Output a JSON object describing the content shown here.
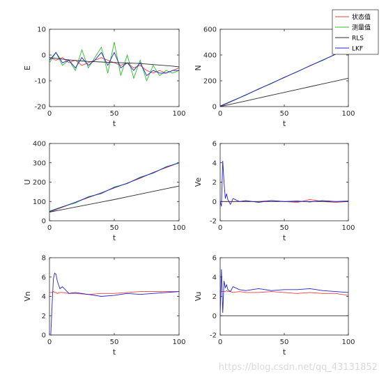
{
  "watermark": "https://blog.csdn.net/qq_43131852",
  "colors": {
    "state": "#e8413f",
    "meas": "#22c322",
    "rls": "#2b2b2b",
    "lkf": "#2020d0",
    "axis": "#262626"
  },
  "chart_data": [
    {
      "id": "E",
      "type": "line",
      "xlabel": "t",
      "ylabel": "E",
      "xlim": [
        0,
        100
      ],
      "ylim": [
        -20,
        10
      ],
      "xticks": [
        0,
        50,
        100
      ],
      "yticks": [
        -20,
        -10,
        0,
        10
      ],
      "x": [
        0,
        5,
        10,
        15,
        20,
        25,
        30,
        35,
        40,
        45,
        50,
        55,
        60,
        65,
        70,
        75,
        80,
        85,
        90,
        95,
        100
      ],
      "series": [
        {
          "name": "状态值",
          "key": "state",
          "values": [
            -1,
            -2,
            -1,
            -3,
            -2,
            -4,
            -3,
            -2,
            -1,
            -2,
            -3,
            -4,
            -3,
            -5,
            -4,
            -6,
            -7,
            -6,
            -7,
            -6,
            -5
          ]
        },
        {
          "name": "测量值",
          "key": "meas",
          "values": [
            -3,
            1,
            -4,
            -2,
            -6,
            2,
            -5,
            -1,
            3,
            -7,
            5,
            -8,
            0,
            -9,
            -2,
            -10,
            -4,
            -8,
            -6,
            -7,
            -6
          ]
        },
        {
          "name": "RLS",
          "key": "rls",
          "values": [
            -1,
            -1.3,
            -1.6,
            -1.9,
            -2.1,
            -2.3,
            -2.5,
            -2.6,
            -2.7,
            -2.8,
            -2.9,
            -3.0,
            -3.1,
            -3.2,
            -3.3,
            -3.5,
            -3.7,
            -3.9,
            -4.1,
            -4.3,
            -4.6
          ]
        },
        {
          "name": "LKF",
          "key": "lkf",
          "values": [
            -2,
            1,
            -3,
            -2,
            -5,
            -1,
            -4,
            -2,
            1,
            -4,
            1,
            -5,
            -3,
            -6,
            -3,
            -8,
            -6,
            -7,
            -7,
            -6,
            -6
          ]
        }
      ]
    },
    {
      "id": "N",
      "type": "line",
      "xlabel": "t",
      "ylabel": "N",
      "xlim": [
        0,
        100
      ],
      "ylim": [
        0,
        600
      ],
      "xticks": [
        0,
        50,
        100
      ],
      "yticks": [
        0,
        200,
        400,
        600
      ],
      "x": [
        0,
        10,
        20,
        30,
        40,
        50,
        60,
        70,
        80,
        90,
        100
      ],
      "series": [
        {
          "name": "状态值",
          "key": "state",
          "values": [
            0,
            45,
            90,
            135,
            180,
            225,
            270,
            315,
            360,
            405,
            450
          ]
        },
        {
          "name": "测量值",
          "key": "meas",
          "values": [
            5,
            48,
            88,
            138,
            178,
            228,
            268,
            318,
            358,
            408,
            452
          ]
        },
        {
          "name": "RLS",
          "key": "rls",
          "values": [
            0,
            22,
            44,
            66,
            88,
            110,
            132,
            154,
            176,
            198,
            220
          ]
        },
        {
          "name": "LKF",
          "key": "lkf",
          "values": [
            3,
            46,
            91,
            136,
            181,
            226,
            271,
            316,
            361,
            406,
            451
          ]
        }
      ]
    },
    {
      "id": "U",
      "type": "line",
      "xlabel": "t",
      "ylabel": "U",
      "xlim": [
        0,
        100
      ],
      "ylim": [
        0,
        400
      ],
      "xticks": [
        0,
        50,
        100
      ],
      "yticks": [
        0,
        100,
        200,
        300,
        400
      ],
      "x": [
        0,
        10,
        20,
        30,
        40,
        50,
        60,
        70,
        80,
        90,
        100
      ],
      "series": [
        {
          "name": "状态值",
          "key": "state",
          "values": [
            45,
            70,
            95,
            120,
            145,
            170,
            195,
            220,
            250,
            275,
            300
          ]
        },
        {
          "name": "测量值",
          "key": "meas",
          "values": [
            50,
            73,
            92,
            125,
            140,
            175,
            192,
            226,
            246,
            280,
            298
          ]
        },
        {
          "name": "RLS",
          "key": "rls",
          "values": [
            45,
            58,
            71,
            84,
            97,
            110,
            124,
            138,
            152,
            166,
            180
          ]
        },
        {
          "name": "LKF",
          "key": "lkf",
          "values": [
            48,
            72,
            96,
            122,
            143,
            172,
            194,
            223,
            248,
            278,
            301
          ]
        }
      ]
    },
    {
      "id": "Ve",
      "type": "line",
      "xlabel": "t",
      "ylabel": "Ve",
      "xlim": [
        0,
        100
      ],
      "ylim": [
        -2,
        6
      ],
      "xticks": [
        0,
        50,
        100
      ],
      "yticks": [
        -2,
        0,
        2,
        4,
        6
      ],
      "x": [
        0,
        1,
        2,
        3,
        4,
        5,
        6,
        8,
        10,
        15,
        20,
        30,
        40,
        50,
        60,
        70,
        80,
        90,
        100
      ],
      "series": [
        {
          "name": "状态值",
          "key": "state",
          "values": [
            0,
            0,
            0,
            0,
            0,
            0,
            0,
            0,
            0,
            0,
            0,
            0,
            0.1,
            0,
            -0.1,
            0.2,
            0,
            -0.1,
            0
          ]
        },
        {
          "name": "RLS",
          "key": "rls",
          "values": [
            0,
            0,
            0,
            0,
            0,
            0,
            0,
            0,
            0,
            0,
            0,
            0,
            0,
            0,
            0,
            0,
            0,
            0,
            0
          ]
        },
        {
          "name": "LKF",
          "key": "lkf",
          "values": [
            0,
            -0.5,
            4.2,
            2.0,
            0.3,
            0.8,
            0.2,
            -0.3,
            0.3,
            0.0,
            0.1,
            -0.1,
            0.1,
            0.0,
            0.05,
            -0.05,
            0.1,
            0.0,
            0.05
          ]
        }
      ]
    },
    {
      "id": "Vn",
      "type": "line",
      "xlabel": "t",
      "ylabel": "Vn",
      "xlim": [
        0,
        100
      ],
      "ylim": [
        0,
        8
      ],
      "xticks": [
        0,
        50,
        100
      ],
      "yticks": [
        0,
        2,
        4,
        6,
        8
      ],
      "x": [
        0,
        1,
        2,
        3,
        4,
        5,
        6,
        8,
        10,
        15,
        20,
        30,
        40,
        50,
        60,
        70,
        80,
        90,
        100
      ],
      "series": [
        {
          "name": "状态值",
          "key": "state",
          "values": [
            4.4,
            4.4,
            4.4,
            4.5,
            4.4,
            4.4,
            4.3,
            4.4,
            4.4,
            4.3,
            4.3,
            4.2,
            4.3,
            4.3,
            4.4,
            4.5,
            4.5,
            4.5,
            4.5
          ]
        },
        {
          "name": "RLS",
          "key": "rls",
          "values": [
            0,
            0,
            0,
            0,
            0,
            0,
            0,
            0,
            0,
            0,
            0,
            0,
            0,
            0,
            0,
            0,
            0,
            0,
            0
          ]
        },
        {
          "name": "LKF",
          "key": "lkf",
          "values": [
            0,
            0,
            3.0,
            5.8,
            6.4,
            6.3,
            5.6,
            4.8,
            5.0,
            4.3,
            4.4,
            4.2,
            4.0,
            4.1,
            4.3,
            4.2,
            4.3,
            4.4,
            4.5
          ]
        }
      ]
    },
    {
      "id": "Vu",
      "type": "line",
      "xlabel": "t",
      "ylabel": "Vu",
      "xlim": [
        0,
        100
      ],
      "ylim": [
        -2,
        6
      ],
      "xticks": [
        0,
        50,
        100
      ],
      "yticks": [
        -2,
        0,
        2,
        4,
        6
      ],
      "x": [
        0,
        1,
        2,
        3,
        4,
        5,
        6,
        8,
        10,
        15,
        20,
        30,
        40,
        50,
        60,
        70,
        80,
        90,
        100
      ],
      "series": [
        {
          "name": "状态值",
          "key": "state",
          "values": [
            2.5,
            2.5,
            2.5,
            2.5,
            2.5,
            2.6,
            2.5,
            2.5,
            2.4,
            2.5,
            2.4,
            2.4,
            2.5,
            2.4,
            2.3,
            2.4,
            2.3,
            2.3,
            2.1
          ]
        },
        {
          "name": "RLS",
          "key": "rls",
          "values": [
            0,
            0,
            0,
            0,
            0,
            0,
            0,
            0,
            0,
            0,
            0,
            0,
            0,
            0,
            0,
            0,
            0,
            0,
            0
          ]
        },
        {
          "name": "LKF",
          "key": "lkf",
          "values": [
            0,
            4.8,
            0.3,
            3.6,
            2.9,
            3.2,
            2.7,
            2.5,
            3.0,
            2.7,
            2.6,
            2.8,
            2.6,
            2.7,
            2.7,
            2.8,
            2.6,
            2.5,
            2.4
          ]
        }
      ]
    }
  ],
  "legend": {
    "placement": "top-right",
    "entries": [
      {
        "label": "状态值",
        "key": "state"
      },
      {
        "label": "测量值",
        "key": "meas"
      },
      {
        "label": "RLS",
        "key": "rls"
      },
      {
        "label": "LKF",
        "key": "lkf"
      }
    ]
  }
}
